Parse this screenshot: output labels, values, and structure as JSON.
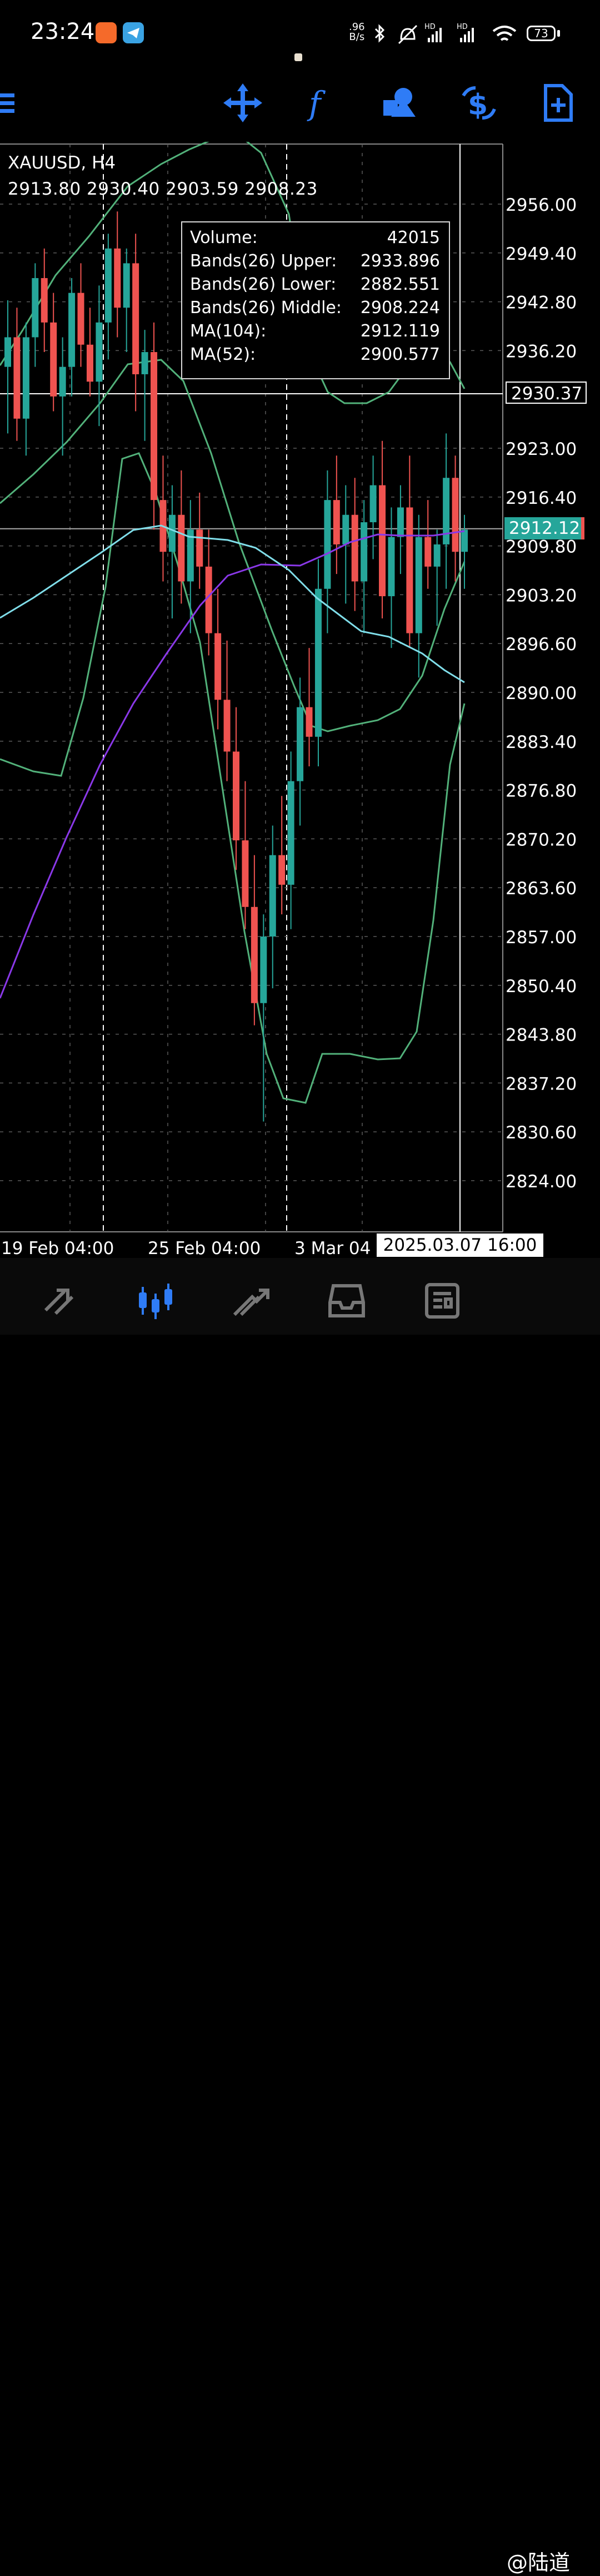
{
  "status_bar": {
    "time": "23:24",
    "net_speed_value": ".96",
    "net_speed_unit": "B/s",
    "battery": "73",
    "icons": [
      "taobao-app-icon",
      "telegram-app-icon",
      "bluetooth-icon",
      "mute-icon",
      "hd-signal-icon",
      "hd-signal-icon",
      "wifi-icon",
      "battery-icon"
    ]
  },
  "toolbar": {
    "icons": [
      "menu-icon",
      "crosshair-icon",
      "indicators-icon",
      "objects-icon",
      "symbol-dollar-icon",
      "new-order-icon"
    ],
    "accent": "#2f7cf6"
  },
  "chart": {
    "symbol": "XAUUSD, H4",
    "ohlc": "2913.80 2930.40 2903.59 2908.23",
    "crosshair_price": "2930.37",
    "last_price": "2912.12",
    "crosshair_time": "2025.03.07 16:00",
    "time_labels": [
      "19 Feb 04:00",
      "25 Feb 04:00",
      "3 Mar 04"
    ],
    "price_labels": [
      "2956.00",
      "2949.40",
      "2942.80",
      "2936.20",
      "2923.00",
      "2916.40",
      "2909.80",
      "2903.20",
      "2896.60",
      "2890.00",
      "2883.40",
      "2876.80",
      "2870.20",
      "2863.60",
      "2857.00",
      "2850.40",
      "2843.80",
      "2837.20",
      "2830.60",
      "2824.00"
    ],
    "colors": {
      "bull": "#26a69a",
      "bear": "#ef5350",
      "bands": "#52b17a",
      "ma104": "#8a38e8",
      "ma52": "#80deea",
      "grid": "#5a5a5a"
    }
  },
  "tooltip": {
    "rows": [
      {
        "label": "Volume:",
        "value": "42015"
      },
      {
        "label": "Bands(26) Upper:",
        "value": "2933.896"
      },
      {
        "label": "Bands(26) Lower:",
        "value": "2882.551"
      },
      {
        "label": "Bands(26) Middle:",
        "value": "2908.224"
      },
      {
        "label": "MA(104):",
        "value": "2912.119"
      },
      {
        "label": "MA(52):",
        "value": "2900.577"
      }
    ]
  },
  "chart_data": {
    "type": "candlestick",
    "title": "XAUUSD, H4",
    "ylim": [
      2820,
      2965
    ],
    "x_labels": [
      "19 Feb 04:00",
      "25 Feb 04:00",
      "3 Mar 04"
    ],
    "candles": [
      [
        2934,
        2943,
        2925,
        2938
      ],
      [
        2938,
        2942,
        2924,
        2927
      ],
      [
        2927,
        2940,
        2922,
        2938
      ],
      [
        2938,
        2948,
        2934,
        2946
      ],
      [
        2946,
        2950,
        2936,
        2940
      ],
      [
        2940,
        2944,
        2928,
        2930
      ],
      [
        2930,
        2938,
        2922,
        2934
      ],
      [
        2934,
        2946,
        2930,
        2944
      ],
      [
        2944,
        2948,
        2934,
        2937
      ],
      [
        2937,
        2942,
        2930,
        2932
      ],
      [
        2932,
        2945,
        2926,
        2940
      ],
      [
        2940,
        2952,
        2935,
        2950
      ],
      [
        2950,
        2955,
        2938,
        2942
      ],
      [
        2942,
        2950,
        2936,
        2948
      ],
      [
        2948,
        2952,
        2928,
        2933
      ],
      [
        2933,
        2939,
        2924,
        2936
      ],
      [
        2936,
        2940,
        2912,
        2916
      ],
      [
        2916,
        2922,
        2905,
        2909
      ],
      [
        2909,
        2918,
        2900,
        2914
      ],
      [
        2914,
        2920,
        2902,
        2905
      ],
      [
        2905,
        2916,
        2898,
        2912
      ],
      [
        2912,
        2917,
        2904,
        2907
      ],
      [
        2907,
        2912,
        2895,
        2898
      ],
      [
        2898,
        2904,
        2885,
        2889
      ],
      [
        2889,
        2897,
        2878,
        2882
      ],
      [
        2882,
        2888,
        2866,
        2870
      ],
      [
        2870,
        2878,
        2858,
        2861
      ],
      [
        2861,
        2868,
        2845,
        2848
      ],
      [
        2848,
        2860,
        2832,
        2857
      ],
      [
        2857,
        2872,
        2850,
        2868
      ],
      [
        2868,
        2876,
        2860,
        2864
      ],
      [
        2864,
        2882,
        2858,
        2878
      ],
      [
        2878,
        2892,
        2872,
        2888
      ],
      [
        2888,
        2896,
        2880,
        2884
      ],
      [
        2884,
        2908,
        2880,
        2904
      ],
      [
        2904,
        2920,
        2898,
        2916
      ],
      [
        2916,
        2922,
        2906,
        2910
      ],
      [
        2910,
        2918,
        2902,
        2914
      ],
      [
        2914,
        2919,
        2901,
        2905
      ],
      [
        2905,
        2916,
        2898,
        2913
      ],
      [
        2913,
        2922,
        2908,
        2918
      ],
      [
        2918,
        2924,
        2900,
        2903
      ],
      [
        2903,
        2915,
        2896,
        2911
      ],
      [
        2911,
        2918,
        2906,
        2915
      ],
      [
        2915,
        2922,
        2896,
        2898
      ],
      [
        2898,
        2914,
        2892,
        2911
      ],
      [
        2911,
        2916,
        2904,
        2907
      ],
      [
        2907,
        2912,
        2899,
        2910
      ],
      [
        2910,
        2925,
        2904,
        2919
      ],
      [
        2919,
        2922,
        2905,
        2909
      ],
      [
        2909,
        2914,
        2904,
        2912
      ]
    ],
    "series": [
      {
        "name": "MA(104)",
        "last": 2912.119
      },
      {
        "name": "MA(52)",
        "last": 2900.577
      },
      {
        "name": "Bands(26) Upper",
        "last": 2933.896
      },
      {
        "name": "Bands(26) Middle",
        "last": 2908.224
      },
      {
        "name": "Bands(26) Lower",
        "last": 2882.551
      }
    ]
  },
  "bottom_nav": {
    "items": [
      "quotes-icon",
      "chart-icon",
      "trade-icon",
      "history-icon",
      "news-icon"
    ],
    "active": "chart-icon"
  },
  "watermark": "@陆道"
}
